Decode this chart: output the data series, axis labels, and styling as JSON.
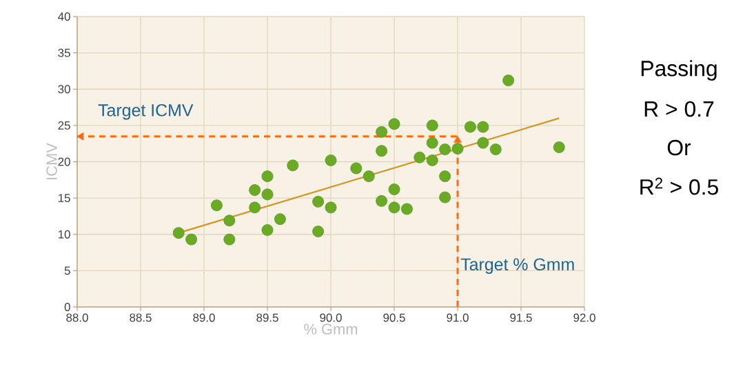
{
  "chart_data": {
    "type": "scatter",
    "xlabel": "% Gmm",
    "ylabel": "ICMV",
    "xlim": [
      88,
      92
    ],
    "ylim": [
      0,
      40
    ],
    "xticks": [
      {
        "value": 88,
        "label": "88.0"
      },
      {
        "value": 88.5,
        "label": "88.5"
      },
      {
        "value": 89,
        "label": "89.0"
      },
      {
        "value": 89.5,
        "label": "89.5"
      },
      {
        "value": 90,
        "label": "90.0"
      },
      {
        "value": 90.5,
        "label": "90.5"
      },
      {
        "value": 91,
        "label": "91.0"
      },
      {
        "value": 91.5,
        "label": "91.5"
      },
      {
        "value": 92,
        "label": "92.0"
      }
    ],
    "yticks": [
      0,
      5,
      10,
      15,
      20,
      25,
      30,
      35,
      40
    ],
    "grid": true,
    "series": [
      {
        "marker": "circle",
        "color": "#6aaa24",
        "x": [
          88.8,
          88.9,
          89.1,
          89.2,
          89.2,
          89.4,
          89.4,
          89.5,
          89.5,
          89.5,
          89.6,
          89.7,
          89.9,
          89.9,
          90.0,
          90.0,
          90.2,
          90.3,
          90.4,
          90.4,
          90.4,
          90.5,
          90.5,
          90.5,
          90.6,
          90.7,
          90.8,
          90.8,
          90.8,
          90.9,
          90.9,
          90.9,
          91.0,
          91.1,
          91.2,
          91.2,
          91.3,
          91.4,
          91.8
        ],
        "values": [
          10.2,
          9.3,
          14.0,
          11.9,
          9.3,
          16.1,
          13.7,
          18.0,
          15.5,
          10.6,
          12.1,
          19.5,
          14.5,
          10.4,
          20.2,
          13.7,
          19.1,
          18.0,
          24.1,
          21.5,
          14.6,
          25.2,
          16.2,
          13.7,
          13.5,
          20.6,
          25.0,
          22.6,
          20.2,
          21.7,
          18.0,
          15.1,
          21.8,
          24.8,
          24.8,
          22.6,
          21.7,
          31.2,
          22.0
        ]
      },
      {
        "type": "line",
        "marker": "none",
        "color": "#d4961e",
        "x": [
          88.8,
          91.8
        ],
        "values": [
          10.2,
          26.0
        ]
      }
    ],
    "ref_lines": [
      {
        "axis": "y",
        "value": 23.5,
        "label": "Target ICMV",
        "color": "#ff6a13",
        "line_style": "dashed"
      },
      {
        "axis": "x",
        "value": 91.0,
        "label": "Target % Gmm",
        "color": "#ff6a13",
        "line_style": "dashed"
      }
    ],
    "annotations": [
      "Passing",
      "R > 0.7",
      "Or",
      "R$^{2}$ > 0.5"
    ]
  }
}
